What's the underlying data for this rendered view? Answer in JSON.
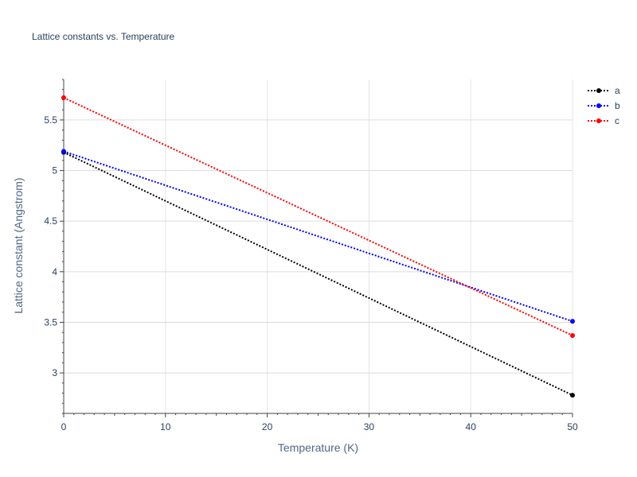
{
  "chart_data": {
    "type": "line",
    "title": "Lattice constants vs. Temperature",
    "xlabel": "Temperature (K)",
    "ylabel": "Lattice constant (Angstrom)",
    "xlim": [
      0,
      50
    ],
    "ylim": [
      2.6,
      5.9
    ],
    "x_ticks": [
      0,
      10,
      20,
      30,
      40,
      50
    ],
    "y_ticks": [
      3,
      3.5,
      4,
      4.5,
      5,
      5.5
    ],
    "grid": true,
    "legend_position": "top-right",
    "series": [
      {
        "name": "a",
        "color": "#000000",
        "x": [
          0,
          50
        ],
        "y": [
          5.18,
          2.78
        ]
      },
      {
        "name": "b",
        "color": "#0000ff",
        "x": [
          0,
          50
        ],
        "y": [
          5.19,
          3.51
        ]
      },
      {
        "name": "c",
        "color": "#ff0000",
        "x": [
          0,
          50
        ],
        "y": [
          5.72,
          3.37
        ]
      }
    ]
  }
}
